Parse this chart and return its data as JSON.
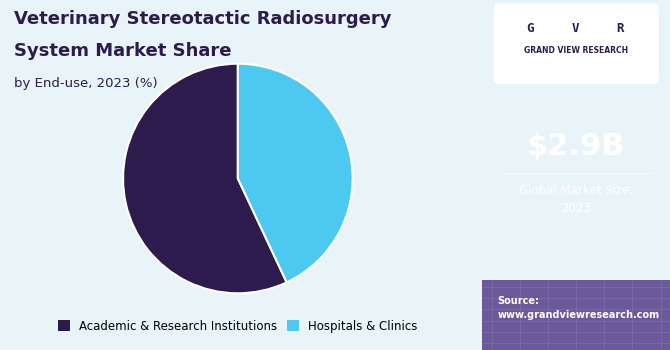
{
  "title_line1": "Veterinary Stereotactic Radiosurgery",
  "title_line2": "System Market Share",
  "subtitle": "by End-use, 2023 (%)",
  "slices": [
    57,
    43
  ],
  "slice_colors": [
    "#2d1b4e",
    "#4dc8f0"
  ],
  "slice_labels": [
    "Academic & Research Institutions",
    "Hospitals & Clinics"
  ],
  "legend_dot_colors": [
    "#2d1b4e",
    "#4dc8f0"
  ],
  "bg_color": "#e8f4f8",
  "right_panel_bg": "#3b1f6e",
  "market_size_value": "$2.9B",
  "market_size_label": "Global Market Size,\n2023",
  "source_text": "Source:\nwww.grandviewresearch.com",
  "title_color": "#2d1b4e",
  "subtitle_color": "#2d1b4e",
  "start_angle": 90
}
